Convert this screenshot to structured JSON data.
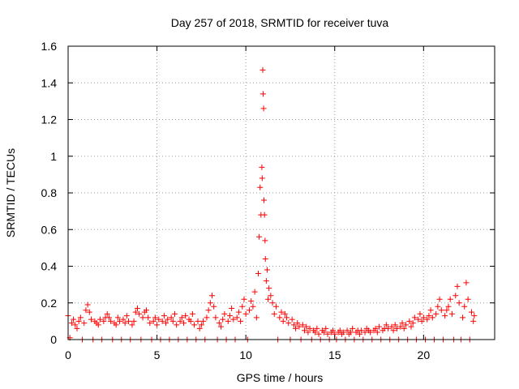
{
  "chart_data": {
    "type": "scatter",
    "title": "Day 257 of 2018, SRMTID for receiver tuva",
    "xlabel": "GPS time / hours",
    "ylabel": "SRMTID / TECUs",
    "xlim": [
      0,
      24
    ],
    "ylim": [
      0,
      1.6
    ],
    "x_ticks": [
      0,
      5,
      10,
      15,
      20
    ],
    "x_tick_labels": [
      "0",
      "5",
      "10",
      "15",
      "20"
    ],
    "y_ticks": [
      0,
      0.2,
      0.4,
      0.6,
      0.8,
      1.0,
      1.2,
      1.4,
      1.6
    ],
    "y_tick_labels": [
      "0",
      "0.2",
      "0.4",
      "0.6",
      "0.8",
      "1",
      "1.2",
      "1.4",
      "1.6"
    ],
    "grid": true,
    "marker": "+",
    "color": "#ff0000",
    "series": [
      {
        "name": "SRMTID",
        "points": [
          [
            0.0,
            0.13
          ],
          [
            0.1,
            0.01
          ],
          [
            0.2,
            0.09
          ],
          [
            0.3,
            0.11
          ],
          [
            0.4,
            0.08
          ],
          [
            0.5,
            0.06
          ],
          [
            0.6,
            0.1
          ],
          [
            0.7,
            0.12
          ],
          [
            0.8,
            0.0
          ],
          [
            0.9,
            0.09
          ],
          [
            1.0,
            0.16
          ],
          [
            1.1,
            0.19
          ],
          [
            1.2,
            0.15
          ],
          [
            1.3,
            0.11
          ],
          [
            1.4,
            0.0
          ],
          [
            1.5,
            0.1
          ],
          [
            1.6,
            0.09
          ],
          [
            1.7,
            0.08
          ],
          [
            1.8,
            0.11
          ],
          [
            1.9,
            0.0
          ],
          [
            2.0,
            0.1
          ],
          [
            2.1,
            0.12
          ],
          [
            2.2,
            0.14
          ],
          [
            2.3,
            0.12
          ],
          [
            2.4,
            0.1
          ],
          [
            2.5,
            0.0
          ],
          [
            2.6,
            0.09
          ],
          [
            2.7,
            0.08
          ],
          [
            2.8,
            0.12
          ],
          [
            2.9,
            0.1
          ],
          [
            3.0,
            0.0
          ],
          [
            3.1,
            0.11
          ],
          [
            3.2,
            0.09
          ],
          [
            3.3,
            0.13
          ],
          [
            3.4,
            0.1
          ],
          [
            3.5,
            0.0
          ],
          [
            3.6,
            0.08
          ],
          [
            3.7,
            0.1
          ],
          [
            3.8,
            0.15
          ],
          [
            3.9,
            0.17
          ],
          [
            4.0,
            0.14
          ],
          [
            4.1,
            0.0
          ],
          [
            4.2,
            0.12
          ],
          [
            4.3,
            0.15
          ],
          [
            4.4,
            0.16
          ],
          [
            4.5,
            0.12
          ],
          [
            4.6,
            0.09
          ],
          [
            4.7,
            0.0
          ],
          [
            4.8,
            0.1
          ],
          [
            4.9,
            0.12
          ],
          [
            5.0,
            0.08
          ],
          [
            5.1,
            0.11
          ],
          [
            5.2,
            0.0
          ],
          [
            5.3,
            0.1
          ],
          [
            5.4,
            0.13
          ],
          [
            5.5,
            0.09
          ],
          [
            5.6,
            0.11
          ],
          [
            5.7,
            0.0
          ],
          [
            5.8,
            0.12
          ],
          [
            5.9,
            0.1
          ],
          [
            6.0,
            0.14
          ],
          [
            6.1,
            0.08
          ],
          [
            6.2,
            0.0
          ],
          [
            6.3,
            0.1
          ],
          [
            6.4,
            0.12
          ],
          [
            6.5,
            0.09
          ],
          [
            6.6,
            0.13
          ],
          [
            6.7,
            0.0
          ],
          [
            6.8,
            0.11
          ],
          [
            6.9,
            0.1
          ],
          [
            7.0,
            0.14
          ],
          [
            7.1,
            0.08
          ],
          [
            7.2,
            0.0
          ],
          [
            7.3,
            0.1
          ],
          [
            7.4,
            0.06
          ],
          [
            7.5,
            0.08
          ],
          [
            7.6,
            0.1
          ],
          [
            7.7,
            0.0
          ],
          [
            7.8,
            0.12
          ],
          [
            7.9,
            0.16
          ],
          [
            8.0,
            0.2
          ],
          [
            8.1,
            0.24
          ],
          [
            8.2,
            0.18
          ],
          [
            8.3,
            0.12
          ],
          [
            8.4,
            0.0
          ],
          [
            8.5,
            0.09
          ],
          [
            8.6,
            0.07
          ],
          [
            8.7,
            0.11
          ],
          [
            8.8,
            0.14
          ],
          [
            8.9,
            0.0
          ],
          [
            9.0,
            0.1
          ],
          [
            9.1,
            0.13
          ],
          [
            9.2,
            0.17
          ],
          [
            9.3,
            0.11
          ],
          [
            9.4,
            0.0
          ],
          [
            9.5,
            0.12
          ],
          [
            9.6,
            0.15
          ],
          [
            9.7,
            0.1
          ],
          [
            9.8,
            0.18
          ],
          [
            9.9,
            0.22
          ],
          [
            10.0,
            0.14
          ],
          [
            10.1,
            0.0
          ],
          [
            10.2,
            0.16
          ],
          [
            10.3,
            0.21
          ],
          [
            10.4,
            0.18
          ],
          [
            10.5,
            0.26
          ],
          [
            10.6,
            0.12
          ],
          [
            10.7,
            0.36
          ],
          [
            10.75,
            0.56
          ],
          [
            10.8,
            0.83
          ],
          [
            10.85,
            0.68
          ],
          [
            10.9,
            0.94
          ],
          [
            10.92,
            0.88
          ],
          [
            10.95,
            1.47
          ],
          [
            10.97,
            1.34
          ],
          [
            11.0,
            1.26
          ],
          [
            11.02,
            0.76
          ],
          [
            11.05,
            0.68
          ],
          [
            11.08,
            0.54
          ],
          [
            11.1,
            0.44
          ],
          [
            11.15,
            0.32
          ],
          [
            11.2,
            0.38
          ],
          [
            11.25,
            0.22
          ],
          [
            11.3,
            0.28
          ],
          [
            11.4,
            0.24
          ],
          [
            11.5,
            0.2
          ],
          [
            11.6,
            0.14
          ],
          [
            11.7,
            0.18
          ],
          [
            11.8,
            0.0
          ],
          [
            11.9,
            0.12
          ],
          [
            12.0,
            0.15
          ],
          [
            12.1,
            0.1
          ],
          [
            12.2,
            0.14
          ],
          [
            12.3,
            0.12
          ],
          [
            12.4,
            0.09
          ],
          [
            12.5,
            0.0
          ],
          [
            12.6,
            0.11
          ],
          [
            12.7,
            0.08
          ],
          [
            12.8,
            0.06
          ],
          [
            12.9,
            0.09
          ],
          [
            13.0,
            0.07
          ],
          [
            13.1,
            0.0
          ],
          [
            13.2,
            0.08
          ],
          [
            13.3,
            0.05
          ],
          [
            13.4,
            0.07
          ],
          [
            13.5,
            0.04
          ],
          [
            13.6,
            0.06
          ],
          [
            13.7,
            0.0
          ],
          [
            13.8,
            0.05
          ],
          [
            13.9,
            0.04
          ],
          [
            14.0,
            0.06
          ],
          [
            14.1,
            0.03
          ],
          [
            14.2,
            0.0
          ],
          [
            14.3,
            0.05
          ],
          [
            14.4,
            0.04
          ],
          [
            14.5,
            0.06
          ],
          [
            14.6,
            0.03
          ],
          [
            14.7,
            0.0
          ],
          [
            14.8,
            0.04
          ],
          [
            14.9,
            0.05
          ],
          [
            15.0,
            0.03
          ],
          [
            15.1,
            0.0
          ],
          [
            15.2,
            0.04
          ],
          [
            15.3,
            0.05
          ],
          [
            15.4,
            0.03
          ],
          [
            15.5,
            0.04
          ],
          [
            15.6,
            0.0
          ],
          [
            15.7,
            0.05
          ],
          [
            15.8,
            0.03
          ],
          [
            15.9,
            0.04
          ],
          [
            16.0,
            0.06
          ],
          [
            16.1,
            0.0
          ],
          [
            16.2,
            0.04
          ],
          [
            16.3,
            0.05
          ],
          [
            16.4,
            0.03
          ],
          [
            16.5,
            0.05
          ],
          [
            16.6,
            0.0
          ],
          [
            16.7,
            0.04
          ],
          [
            16.8,
            0.06
          ],
          [
            16.9,
            0.05
          ],
          [
            17.0,
            0.04
          ],
          [
            17.1,
            0.0
          ],
          [
            17.2,
            0.05
          ],
          [
            17.3,
            0.06
          ],
          [
            17.4,
            0.04
          ],
          [
            17.5,
            0.07
          ],
          [
            17.6,
            0.0
          ],
          [
            17.7,
            0.05
          ],
          [
            17.8,
            0.06
          ],
          [
            17.9,
            0.08
          ],
          [
            18.0,
            0.06
          ],
          [
            18.1,
            0.0
          ],
          [
            18.2,
            0.07
          ],
          [
            18.3,
            0.05
          ],
          [
            18.4,
            0.08
          ],
          [
            18.5,
            0.06
          ],
          [
            18.6,
            0.0
          ],
          [
            18.7,
            0.07
          ],
          [
            18.8,
            0.09
          ],
          [
            18.9,
            0.06
          ],
          [
            19.0,
            0.08
          ],
          [
            19.1,
            0.0
          ],
          [
            19.2,
            0.1
          ],
          [
            19.3,
            0.07
          ],
          [
            19.4,
            0.09
          ],
          [
            19.5,
            0.12
          ],
          [
            19.6,
            0.0
          ],
          [
            19.7,
            0.11
          ],
          [
            19.8,
            0.14
          ],
          [
            19.9,
            0.1
          ],
          [
            20.0,
            0.12
          ],
          [
            20.1,
            0.0
          ],
          [
            20.2,
            0.11
          ],
          [
            20.3,
            0.13
          ],
          [
            20.4,
            0.16
          ],
          [
            20.5,
            0.12
          ],
          [
            20.6,
            0.0
          ],
          [
            20.7,
            0.14
          ],
          [
            20.8,
            0.18
          ],
          [
            20.9,
            0.22
          ],
          [
            21.0,
            0.16
          ],
          [
            21.1,
            0.0
          ],
          [
            21.2,
            0.13
          ],
          [
            21.3,
            0.16
          ],
          [
            21.4,
            0.18
          ],
          [
            21.5,
            0.22
          ],
          [
            21.6,
            0.14
          ],
          [
            21.7,
            0.0
          ],
          [
            21.8,
            0.24
          ],
          [
            21.9,
            0.29
          ],
          [
            22.0,
            0.2
          ],
          [
            22.1,
            0.0
          ],
          [
            22.2,
            0.12
          ],
          [
            22.3,
            0.18
          ],
          [
            22.4,
            0.31
          ],
          [
            22.5,
            0.22
          ],
          [
            22.6,
            0.0
          ],
          [
            22.7,
            0.15
          ],
          [
            22.8,
            0.1
          ],
          [
            22.85,
            0.13
          ]
        ]
      }
    ]
  }
}
